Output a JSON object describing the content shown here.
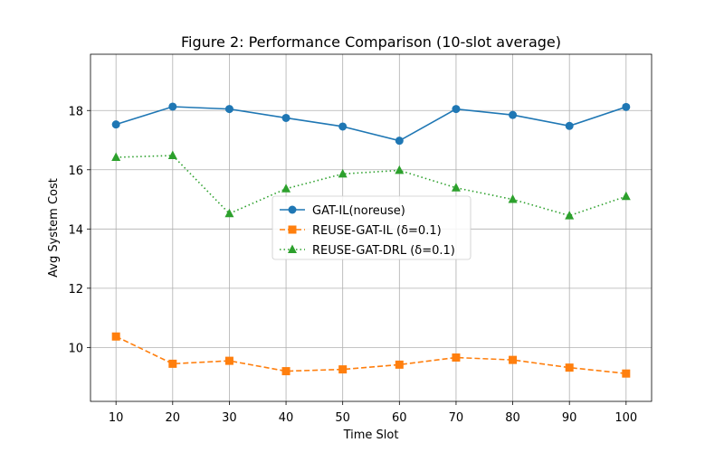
{
  "chart_data": {
    "type": "line",
    "title": "Figure 2: Performance Comparison (10-slot average)",
    "xlabel": "Time Slot",
    "ylabel": "Avg System Cost",
    "x": [
      10,
      20,
      30,
      40,
      50,
      60,
      70,
      80,
      90,
      100
    ],
    "xlim": [
      5.5,
      104.5
    ],
    "ylim": [
      8.18,
      19.9
    ],
    "xticks": [
      10,
      20,
      30,
      40,
      50,
      60,
      70,
      80,
      90,
      100
    ],
    "yticks": [
      10,
      12,
      14,
      16,
      18
    ],
    "grid": true,
    "legend_position": "center",
    "series": [
      {
        "name": "GAT-IL(noreuse)",
        "values": [
          17.53,
          18.13,
          18.05,
          17.75,
          17.46,
          16.98,
          18.05,
          17.85,
          17.48,
          18.12
        ],
        "color": "#1f77b4",
        "linestyle": "solid",
        "marker": "circle"
      },
      {
        "name": "REUSE-GAT-IL (δ=0.1)",
        "values": [
          10.37,
          9.45,
          9.55,
          9.2,
          9.26,
          9.42,
          9.66,
          9.58,
          9.32,
          9.12
        ],
        "color": "#ff7f0e",
        "linestyle": "dashed",
        "marker": "square"
      },
      {
        "name": "REUSE-GAT-DRL (δ=0.1)",
        "values": [
          16.42,
          16.48,
          14.52,
          15.36,
          15.86,
          15.98,
          15.39,
          15.0,
          14.45,
          15.1
        ],
        "color": "#2ca02c",
        "linestyle": "dotted",
        "marker": "triangle"
      }
    ]
  }
}
